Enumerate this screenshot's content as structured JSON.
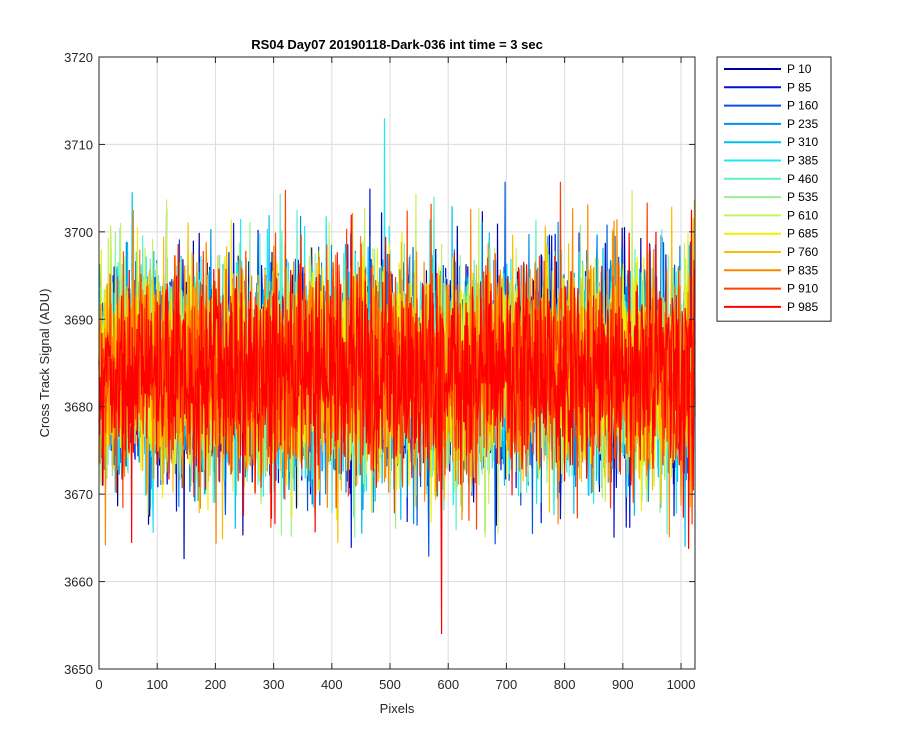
{
  "chart_data": {
    "type": "line",
    "title": "RS04 Day07 20190118-Dark-036 int time = 3 sec",
    "xlabel": "Pixels",
    "ylabel": "Cross Track Signal (ADU)",
    "xlim": [
      0,
      1024
    ],
    "ylim": [
      3650,
      3720
    ],
    "xticks": [
      0,
      100,
      200,
      300,
      400,
      500,
      600,
      700,
      800,
      900,
      1000
    ],
    "yticks": [
      3650,
      3660,
      3670,
      3680,
      3690,
      3700,
      3710,
      3720
    ],
    "grid": true,
    "legend_position": "outside-top-right",
    "n_points": 1024,
    "series": [
      {
        "name": "P 10",
        "color": "#0000a8",
        "mean": 3684,
        "spread": 8.5
      },
      {
        "name": "P 85",
        "color": "#0010d8",
        "mean": 3684,
        "spread": 8.5
      },
      {
        "name": "P 160",
        "color": "#0058e0",
        "mean": 3684,
        "spread": 8.5
      },
      {
        "name": "P 235",
        "color": "#0090e8",
        "mean": 3684,
        "spread": 8.5
      },
      {
        "name": "P 310",
        "color": "#00c0f0",
        "mean": 3684,
        "spread": 8.5
      },
      {
        "name": "P 385",
        "color": "#20e8f0",
        "mean": 3684,
        "spread": 8.5
      },
      {
        "name": "P 460",
        "color": "#60f0c8",
        "mean": 3684,
        "spread": 8.5
      },
      {
        "name": "P 535",
        "color": "#98f098",
        "mean": 3684,
        "spread": 8.5
      },
      {
        "name": "P 610",
        "color": "#c8f060",
        "mean": 3684,
        "spread": 8.5
      },
      {
        "name": "P 685",
        "color": "#f0f000",
        "mean": 3684,
        "spread": 8.5
      },
      {
        "name": "P 760",
        "color": "#f8c000",
        "mean": 3684,
        "spread": 8.5
      },
      {
        "name": "P 835",
        "color": "#ff8800",
        "mean": 3684,
        "spread": 8.5
      },
      {
        "name": "P 910",
        "color": "#ff4000",
        "mean": 3684,
        "spread": 8.5
      },
      {
        "name": "P 985",
        "color": "#ff0000",
        "mean": 3684,
        "spread": 8.5
      }
    ],
    "annotations": [
      {
        "series": "P 385",
        "x": 490,
        "y": 3713
      },
      {
        "series": "P 985",
        "x": 588,
        "y": 3654
      }
    ]
  }
}
